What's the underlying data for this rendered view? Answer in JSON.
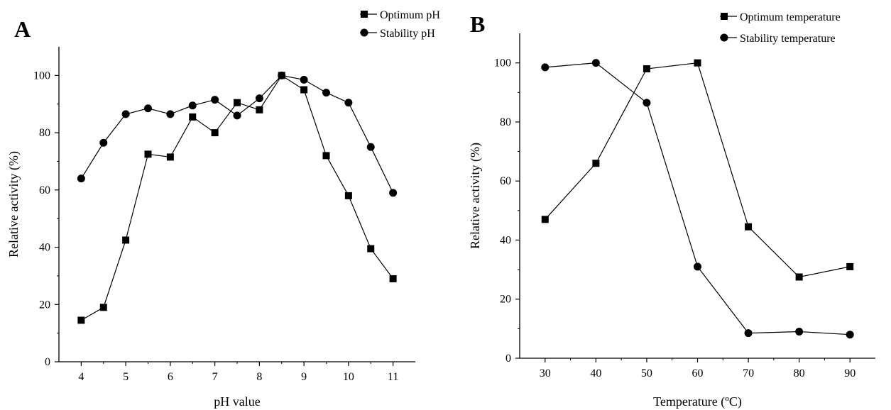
{
  "colors": {
    "line": "#000000",
    "background": "#ffffff"
  },
  "chart_data": [
    {
      "panel": "A",
      "type": "line",
      "xlabel": "pH value",
      "ylabel": "Relative activity (%)",
      "xlim": [
        3.5,
        11.5
      ],
      "ylim": [
        0,
        110
      ],
      "xticks": [
        4,
        5,
        6,
        7,
        8,
        9,
        10,
        11
      ],
      "yticks": [
        0,
        20,
        40,
        60,
        80,
        100
      ],
      "legend_position": "top-right",
      "grid": false,
      "series": [
        {
          "name": "Optimum pH",
          "marker": "square",
          "x": [
            4,
            4.5,
            5,
            5.5,
            6,
            6.5,
            7,
            7.5,
            8,
            8.5,
            9,
            9.5,
            10,
            10.5,
            11
          ],
          "y": [
            14.5,
            19,
            42.5,
            72.5,
            71.5,
            85.5,
            80,
            90.5,
            88,
            100,
            95,
            72,
            58,
            39.5,
            29
          ]
        },
        {
          "name": "Stability pH",
          "marker": "circle",
          "x": [
            4,
            4.5,
            5,
            5.5,
            6,
            6.5,
            7,
            7.5,
            8,
            8.5,
            9,
            9.5,
            10,
            10.5,
            11
          ],
          "y": [
            64,
            76.5,
            86.5,
            88.5,
            86.5,
            89.5,
            91.5,
            86,
            92,
            100,
            98.5,
            94,
            90.5,
            75,
            59
          ]
        }
      ]
    },
    {
      "panel": "B",
      "type": "line",
      "xlabel": "Temperature (ºC)",
      "ylabel": "Relative activity (%)",
      "xlim": [
        25,
        95
      ],
      "ylim": [
        0,
        110
      ],
      "xticks": [
        30,
        40,
        50,
        60,
        70,
        80,
        90
      ],
      "yticks": [
        0,
        20,
        40,
        60,
        80,
        100
      ],
      "legend_position": "top-right",
      "grid": false,
      "series": [
        {
          "name": "Optimum temperature",
          "marker": "square",
          "x": [
            30,
            40,
            50,
            60,
            70,
            80,
            90
          ],
          "y": [
            47,
            66,
            98,
            100,
            44.5,
            27.5,
            31
          ]
        },
        {
          "name": "Stability temperature",
          "marker": "circle",
          "x": [
            30,
            40,
            50,
            60,
            70,
            80,
            90
          ],
          "y": [
            98.5,
            100,
            86.5,
            31,
            8.5,
            9,
            8
          ]
        }
      ]
    }
  ]
}
